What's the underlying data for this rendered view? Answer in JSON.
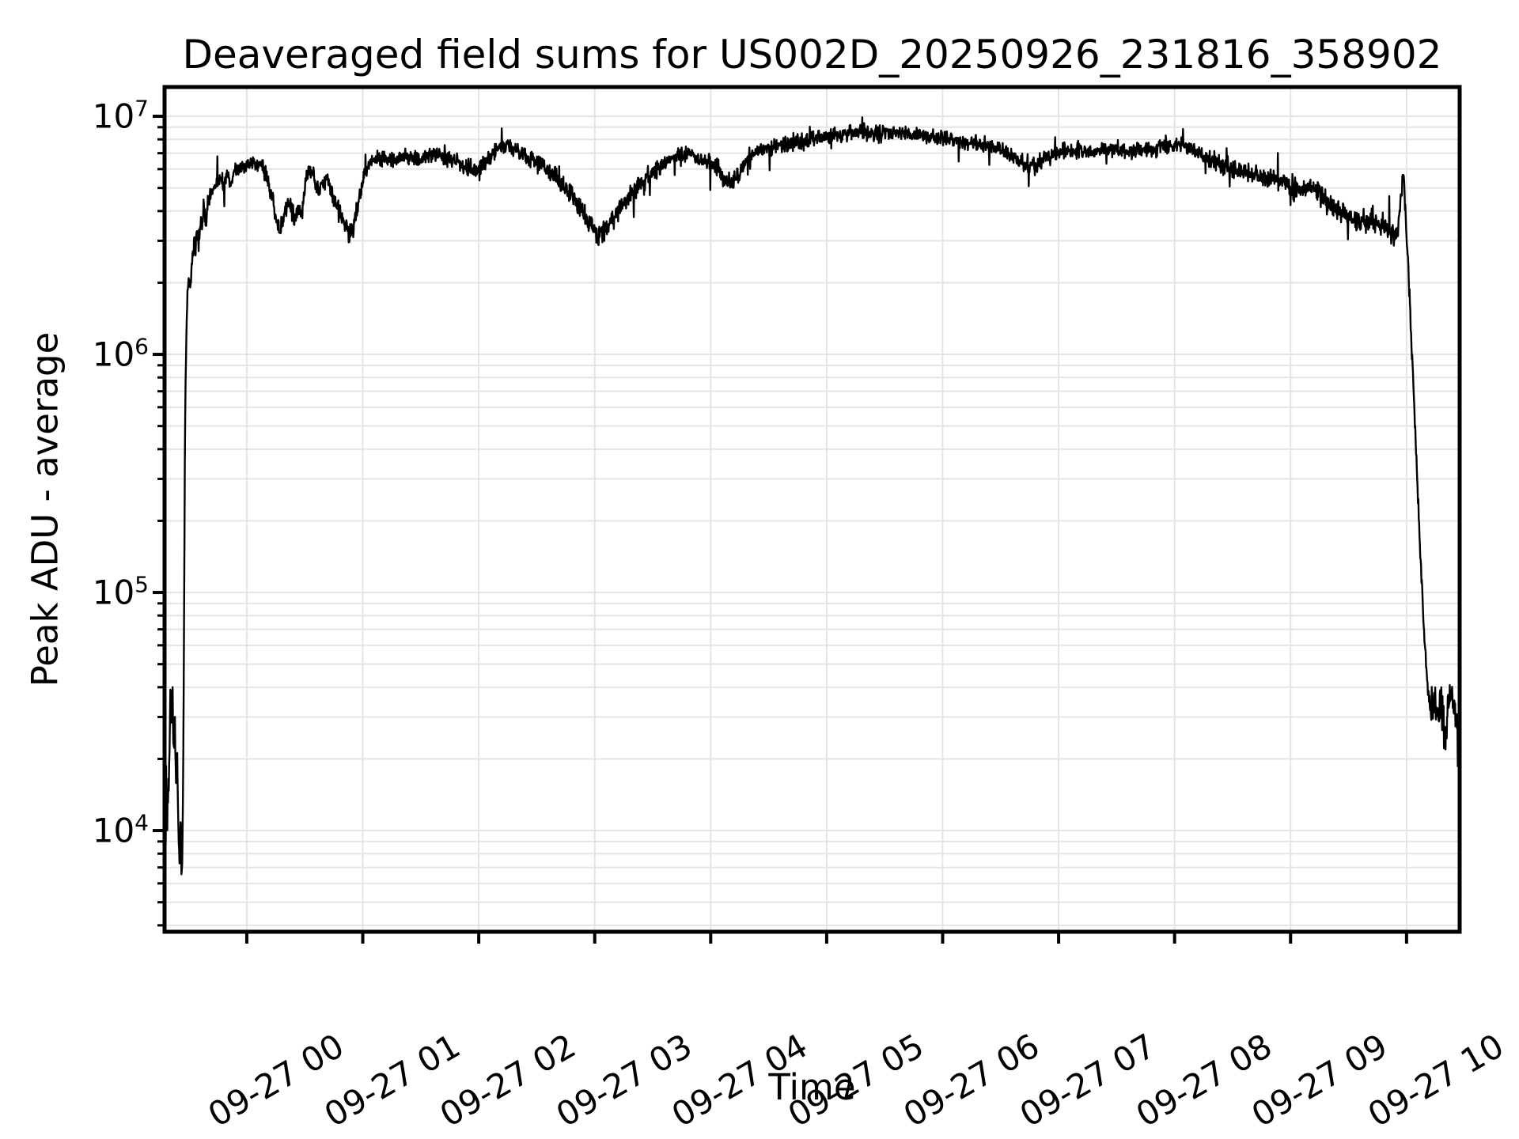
{
  "figure": {
    "background": "#ffffff",
    "line_color": "#000000",
    "grid_color": "#e4e4e4",
    "spine_color": "#000000"
  },
  "chart_data": {
    "type": "line",
    "title": "Deaveraged field sums for US002D_20250926_231816_358902",
    "xlabel": "Time",
    "ylabel": "Peak ADU - average",
    "yscale": "log",
    "grid": "on",
    "legend": "none",
    "ylim_log10": [
      3.575,
      7.123
    ],
    "xlim_hours": [
      -0.709,
      10.458
    ],
    "y_major_ticks": [
      {
        "exp": 7,
        "label_base": "10",
        "label_exp": "7"
      },
      {
        "exp": 6,
        "label_base": "10",
        "label_exp": "6"
      },
      {
        "exp": 5,
        "label_base": "10",
        "label_exp": "5"
      },
      {
        "exp": 4,
        "label_base": "10",
        "label_exp": "4"
      }
    ],
    "x_ticks": [
      {
        "hour": 0,
        "label": "09-27 00"
      },
      {
        "hour": 1,
        "label": "09-27 01"
      },
      {
        "hour": 2,
        "label": "09-27 02"
      },
      {
        "hour": 3,
        "label": "09-27 03"
      },
      {
        "hour": 4,
        "label": "09-27 04"
      },
      {
        "hour": 5,
        "label": "09-27 05"
      },
      {
        "hour": 6,
        "label": "09-27 06"
      },
      {
        "hour": 7,
        "label": "09-27 07"
      },
      {
        "hour": 8,
        "label": "09-27 08"
      },
      {
        "hour": 9,
        "label": "09-27 09"
      },
      {
        "hour": 10,
        "label": "09-27 10"
      }
    ],
    "series_name": "deaveraged field sum",
    "noise_seed": 1337,
    "sample_step_hours": 0.0033,
    "anchors_t_log10_noise": [
      [
        -0.709,
        3.95,
        0.1
      ],
      [
        -0.702,
        3.85,
        0.12
      ],
      [
        -0.695,
        4.25,
        0.12
      ],
      [
        -0.688,
        3.95,
        0.12
      ],
      [
        -0.68,
        4.35,
        0.1
      ],
      [
        -0.672,
        4.15,
        0.1
      ],
      [
        -0.664,
        4.5,
        0.08
      ],
      [
        -0.656,
        4.63,
        0.06
      ],
      [
        -0.648,
        4.4,
        0.08
      ],
      [
        -0.64,
        4.6,
        0.06
      ],
      [
        -0.63,
        4.3,
        0.08
      ],
      [
        -0.62,
        4.5,
        0.07
      ],
      [
        -0.61,
        4.2,
        0.08
      ],
      [
        -0.6,
        4.32,
        0.08
      ],
      [
        -0.59,
        4.05,
        0.09
      ],
      [
        -0.58,
        3.88,
        0.09
      ],
      [
        -0.57,
        4.02,
        0.08
      ],
      [
        -0.56,
        3.8,
        0.08
      ],
      [
        -0.552,
        4.05,
        0.06
      ],
      [
        -0.545,
        4.5,
        0.05
      ],
      [
        -0.54,
        5.0,
        0.04
      ],
      [
        -0.535,
        5.45,
        0.04
      ],
      [
        -0.53,
        5.8,
        0.035
      ],
      [
        -0.522,
        6.05,
        0.035
      ],
      [
        -0.515,
        6.2,
        0.035
      ],
      [
        -0.505,
        6.3,
        0.035
      ],
      [
        -0.495,
        6.32,
        0.035
      ],
      [
        -0.485,
        6.28,
        0.04
      ],
      [
        -0.475,
        6.38,
        0.04
      ],
      [
        -0.465,
        6.42,
        0.04
      ],
      [
        -0.455,
        6.48,
        0.04
      ],
      [
        -0.445,
        6.45,
        0.04
      ],
      [
        -0.43,
        6.52,
        0.04
      ],
      [
        -0.415,
        6.48,
        0.05
      ],
      [
        -0.4,
        6.55,
        0.045
      ],
      [
        -0.385,
        6.54,
        0.05
      ],
      [
        -0.372,
        6.62,
        0.055
      ],
      [
        -0.36,
        6.55,
        0.05
      ],
      [
        -0.34,
        6.62,
        0.04
      ],
      [
        -0.32,
        6.66,
        0.04
      ],
      [
        -0.3,
        6.68,
        0.04
      ],
      [
        -0.28,
        6.7,
        0.04
      ],
      [
        -0.26,
        6.72,
        0.04
      ],
      [
        -0.23,
        6.74,
        0.04
      ],
      [
        -0.2,
        6.72,
        0.04
      ],
      [
        -0.17,
        6.74,
        0.04
      ],
      [
        -0.14,
        6.72,
        0.035
      ],
      [
        -0.1,
        6.76,
        0.035
      ],
      [
        -0.06,
        6.78,
        0.035
      ],
      [
        -0.02,
        6.79,
        0.035
      ],
      [
        0.03,
        6.8,
        0.035
      ],
      [
        0.08,
        6.81,
        0.035
      ],
      [
        0.13,
        6.8,
        0.035
      ],
      [
        0.17,
        6.75,
        0.04
      ],
      [
        0.21,
        6.68,
        0.04
      ],
      [
        0.24,
        6.6,
        0.045
      ],
      [
        0.27,
        6.53,
        0.05
      ],
      [
        0.29,
        6.5,
        0.05
      ],
      [
        0.31,
        6.56,
        0.045
      ],
      [
        0.33,
        6.62,
        0.04
      ],
      [
        0.35,
        6.64,
        0.04
      ],
      [
        0.38,
        6.62,
        0.045
      ],
      [
        0.41,
        6.58,
        0.05
      ],
      [
        0.44,
        6.62,
        0.045
      ],
      [
        0.47,
        6.6,
        0.045
      ],
      [
        0.49,
        6.66,
        0.04
      ],
      [
        0.51,
        6.74,
        0.04
      ],
      [
        0.53,
        6.78,
        0.035
      ],
      [
        0.56,
        6.77,
        0.035
      ],
      [
        0.59,
        6.72,
        0.04
      ],
      [
        0.62,
        6.68,
        0.04
      ],
      [
        0.65,
        6.71,
        0.04
      ],
      [
        0.68,
        6.74,
        0.04
      ],
      [
        0.71,
        6.72,
        0.04
      ],
      [
        0.74,
        6.68,
        0.045
      ],
      [
        0.77,
        6.64,
        0.05
      ],
      [
        0.8,
        6.6,
        0.05
      ],
      [
        0.83,
        6.57,
        0.05
      ],
      [
        0.86,
        6.53,
        0.05
      ],
      [
        0.89,
        6.51,
        0.05
      ],
      [
        0.92,
        6.55,
        0.05
      ],
      [
        0.95,
        6.61,
        0.045
      ],
      [
        0.98,
        6.68,
        0.04
      ],
      [
        1.01,
        6.74,
        0.04
      ],
      [
        1.05,
        6.79,
        0.035
      ],
      [
        1.1,
        6.82,
        0.035
      ],
      [
        1.15,
        6.83,
        0.035
      ],
      [
        1.25,
        6.82,
        0.035
      ],
      [
        1.35,
        6.84,
        0.035
      ],
      [
        1.45,
        6.82,
        0.035
      ],
      [
        1.55,
        6.83,
        0.035
      ],
      [
        1.65,
        6.84,
        0.035
      ],
      [
        1.75,
        6.82,
        0.035
      ],
      [
        1.85,
        6.8,
        0.04
      ],
      [
        1.95,
        6.77,
        0.04
      ],
      [
        2.05,
        6.8,
        0.04
      ],
      [
        2.15,
        6.86,
        0.035
      ],
      [
        2.25,
        6.88,
        0.035
      ],
      [
        2.35,
        6.85,
        0.035
      ],
      [
        2.45,
        6.82,
        0.035
      ],
      [
        2.55,
        6.8,
        0.04
      ],
      [
        2.65,
        6.75,
        0.04
      ],
      [
        2.75,
        6.7,
        0.045
      ],
      [
        2.85,
        6.64,
        0.05
      ],
      [
        2.95,
        6.56,
        0.05
      ],
      [
        3.02,
        6.5,
        0.05
      ],
      [
        3.1,
        6.52,
        0.05
      ],
      [
        3.2,
        6.6,
        0.05
      ],
      [
        3.3,
        6.66,
        0.045
      ],
      [
        3.4,
        6.72,
        0.04
      ],
      [
        3.5,
        6.77,
        0.04
      ],
      [
        3.6,
        6.8,
        0.035
      ],
      [
        3.7,
        6.83,
        0.035
      ],
      [
        3.8,
        6.84,
        0.035
      ],
      [
        3.9,
        6.82,
        0.035
      ],
      [
        4.0,
        6.81,
        0.04
      ],
      [
        4.08,
        6.77,
        0.04
      ],
      [
        4.17,
        6.72,
        0.045
      ],
      [
        4.25,
        6.76,
        0.04
      ],
      [
        4.32,
        6.84,
        0.035
      ],
      [
        4.45,
        6.86,
        0.035
      ],
      [
        4.6,
        6.88,
        0.035
      ],
      [
        4.75,
        6.89,
        0.035
      ],
      [
        4.9,
        6.91,
        0.035
      ],
      [
        5.05,
        6.92,
        0.035
      ],
      [
        5.2,
        6.93,
        0.035
      ],
      [
        5.4,
        6.93,
        0.035
      ],
      [
        5.6,
        6.93,
        0.035
      ],
      [
        5.8,
        6.92,
        0.035
      ],
      [
        6.0,
        6.91,
        0.035
      ],
      [
        6.2,
        6.89,
        0.035
      ],
      [
        6.4,
        6.88,
        0.035
      ],
      [
        6.55,
        6.85,
        0.035
      ],
      [
        6.7,
        6.8,
        0.04
      ],
      [
        6.8,
        6.79,
        0.04
      ],
      [
        6.9,
        6.83,
        0.035
      ],
      [
        7.0,
        6.85,
        0.035
      ],
      [
        7.15,
        6.86,
        0.035
      ],
      [
        7.3,
        6.85,
        0.035
      ],
      [
        7.45,
        6.86,
        0.035
      ],
      [
        7.6,
        6.85,
        0.035
      ],
      [
        7.75,
        6.86,
        0.035
      ],
      [
        7.9,
        6.87,
        0.035
      ],
      [
        8.05,
        6.88,
        0.035
      ],
      [
        8.2,
        6.85,
        0.035
      ],
      [
        8.35,
        6.81,
        0.04
      ],
      [
        8.5,
        6.78,
        0.04
      ],
      [
        8.65,
        6.76,
        0.04
      ],
      [
        8.8,
        6.74,
        0.04
      ],
      [
        8.95,
        6.72,
        0.04
      ],
      [
        9.05,
        6.69,
        0.045
      ],
      [
        9.15,
        6.71,
        0.04
      ],
      [
        9.25,
        6.68,
        0.045
      ],
      [
        9.35,
        6.62,
        0.05
      ],
      [
        9.45,
        6.59,
        0.05
      ],
      [
        9.55,
        6.56,
        0.05
      ],
      [
        9.65,
        6.56,
        0.05
      ],
      [
        9.75,
        6.55,
        0.05
      ],
      [
        9.83,
        6.54,
        0.05
      ],
      [
        9.89,
        6.5,
        0.05
      ],
      [
        9.93,
        6.52,
        0.05
      ],
      [
        9.96,
        6.7,
        0.04
      ],
      [
        9.975,
        6.76,
        0.03
      ],
      [
        9.99,
        6.6,
        0.05
      ],
      [
        10.01,
        6.4,
        0.06
      ],
      [
        10.03,
        6.2,
        0.06
      ],
      [
        10.06,
        5.85,
        0.05
      ],
      [
        10.09,
        5.5,
        0.04
      ],
      [
        10.12,
        5.15,
        0.03
      ],
      [
        10.15,
        4.85,
        0.03
      ],
      [
        10.18,
        4.62,
        0.05
      ],
      [
        10.21,
        4.5,
        0.08
      ],
      [
        10.24,
        4.55,
        0.1
      ],
      [
        10.27,
        4.45,
        0.12
      ],
      [
        10.3,
        4.55,
        0.1
      ],
      [
        10.33,
        4.35,
        0.14
      ],
      [
        10.36,
        4.55,
        0.08
      ],
      [
        10.39,
        4.6,
        0.06
      ],
      [
        10.42,
        4.5,
        0.08
      ],
      [
        10.445,
        4.35,
        0.1
      ],
      [
        10.458,
        4.25,
        0.08
      ]
    ]
  }
}
